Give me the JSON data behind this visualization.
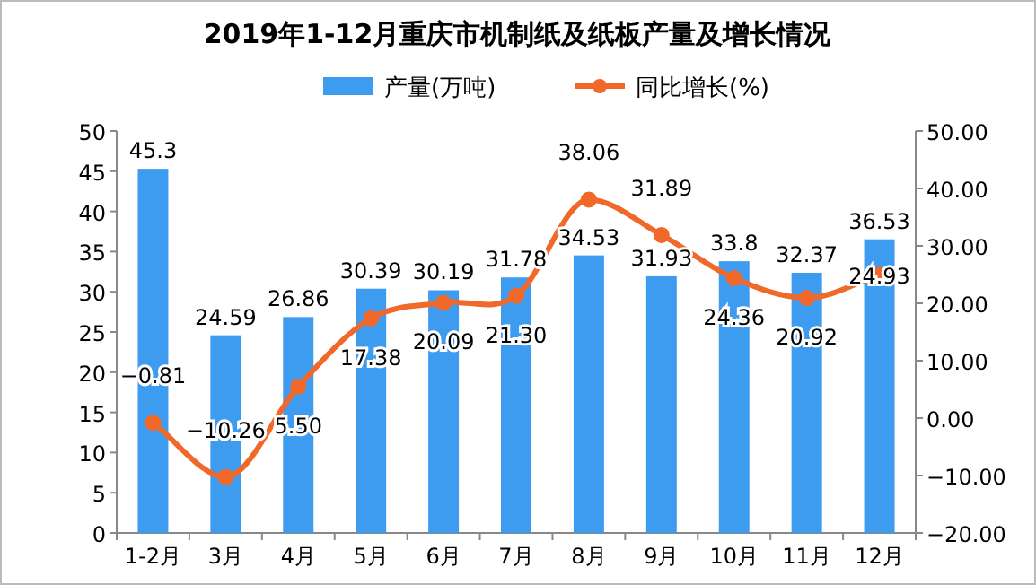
{
  "chart_data": {
    "type": "bar",
    "title": "2019年1-12月重庆市机制纸及纸板产量及增长情况",
    "categories": [
      "1-2月",
      "3月",
      "4月",
      "5月",
      "6月",
      "7月",
      "8月",
      "9月",
      "10月",
      "11月",
      "12月"
    ],
    "series": [
      {
        "name": "产量(万吨)",
        "color": "#3d9cf0",
        "values": [
          45.3,
          24.59,
          26.86,
          30.39,
          30.19,
          31.78,
          34.53,
          31.93,
          33.8,
          32.37,
          36.53
        ],
        "value_labels": [
          "45.3",
          "24.59",
          "26.86",
          "30.39",
          "30.19",
          "31.78",
          "34.53",
          "31.93",
          "33.8",
          "32.37",
          "36.53"
        ]
      },
      {
        "name": "同比增长(%)",
        "type": "line",
        "axis": "y2",
        "color": "#f0692a",
        "values": [
          -0.81,
          -10.26,
          5.5,
          17.38,
          20.09,
          21.3,
          38.06,
          31.89,
          24.36,
          20.92,
          24.93
        ],
        "value_labels": [
          "−0.81",
          "−10.26",
          "5.50",
          "17.38",
          "20.09",
          "21.30",
          "38.06",
          "31.89",
          "24.36",
          "20.92",
          "24.93"
        ]
      }
    ],
    "ylim": [
      0,
      50
    ],
    "yticks": [
      0,
      5,
      10,
      15,
      20,
      25,
      30,
      35,
      40,
      45,
      50
    ],
    "y2lim": [
      -20,
      50
    ],
    "y2ticks": [
      {
        "value": -20,
        "label": "−20.00"
      },
      {
        "value": -10,
        "label": "−10.00"
      },
      {
        "value": 0,
        "label": "0.00"
      },
      {
        "value": 10,
        "label": "10.00"
      },
      {
        "value": 20,
        "label": "20.00"
      },
      {
        "value": 30,
        "label": "30.00"
      },
      {
        "value": 40,
        "label": "40.00"
      },
      {
        "value": 50,
        "label": "50.00"
      }
    ],
    "marker": "circle",
    "legend": "top",
    "grid": false
  }
}
